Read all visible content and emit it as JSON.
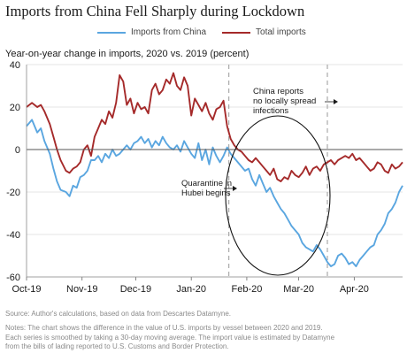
{
  "title": "Imports from China Fell Sharply during Lockdown",
  "subtitle": "Year-on-year change in imports, 2020 vs. 2019 (percent)",
  "source": "Source: Author's calculations, based on data from Descartes Datamyne.",
  "notes": [
    "Notes: The chart shows the difference in the value of U.S. imports by vessel between 2020 and 2019.",
    "Each series is smoothed by taking a 30-day moving average. The import value is estimated by Datamyne",
    "from the bills of lading reported to U.S. Customs and Border Protection."
  ],
  "colors": {
    "china": "#5aa6e0",
    "total": "#a52a2a",
    "grid": "#dddddd",
    "zero": "#555555",
    "ref": "#999999"
  },
  "chart_data": {
    "type": "line",
    "title": "Imports from China Fell Sharply during Lockdown",
    "ylabel": "Year-on-year change in imports, 2020 vs. 2019 (percent)",
    "xlabel": "",
    "ylim": [
      -60,
      40
    ],
    "xlim": [
      0,
      210
    ],
    "yticks": [
      40,
      20,
      0,
      -20,
      -40,
      -60
    ],
    "xticks": [
      {
        "label": "Oct-19",
        "x": 0
      },
      {
        "label": "Nov-19",
        "x": 31
      },
      {
        "label": "Dec-19",
        "x": 61
      },
      {
        "label": "Jan-20",
        "x": 92
      },
      {
        "label": "Feb-20",
        "x": 123
      },
      {
        "label": "Mar-20",
        "x": 152
      },
      {
        "label": "Apr-20",
        "x": 183
      }
    ],
    "grid": true,
    "legend_position": "top",
    "reference_lines": [
      {
        "x": 113,
        "label": ""
      },
      {
        "x": 168,
        "label": ""
      }
    ],
    "annotations": [
      {
        "text": [
          "China reports",
          "no locally spread",
          "infections"
        ]
      },
      {
        "text": [
          "Quarantine in",
          "Hubei begins"
        ]
      }
    ],
    "series": [
      {
        "name": "Imports from China",
        "x": [
          0,
          3,
          6,
          8,
          10,
          13,
          15,
          17,
          19,
          22,
          24,
          26,
          28,
          30,
          32,
          34,
          36,
          38,
          40,
          42,
          44,
          46,
          48,
          50,
          52,
          54,
          56,
          58,
          60,
          62,
          64,
          66,
          68,
          70,
          72,
          74,
          76,
          78,
          80,
          82,
          84,
          86,
          88,
          90,
          92,
          94,
          96,
          98,
          100,
          102,
          104,
          106,
          108,
          110,
          112,
          114,
          116,
          118,
          120,
          122,
          124,
          126,
          128,
          130,
          132,
          134,
          136,
          138,
          140,
          142,
          144,
          146,
          148,
          150,
          152,
          154,
          156,
          158,
          160,
          162,
          164,
          166,
          168,
          170,
          172,
          174,
          176,
          178,
          180,
          182,
          184,
          186,
          188,
          190,
          192,
          194,
          196,
          198,
          200,
          202,
          204,
          206,
          208,
          210
        ],
        "y": [
          11,
          14,
          8,
          10,
          4,
          -2,
          -9,
          -15,
          -19,
          -20,
          -22,
          -17,
          -18,
          -13,
          -12,
          -10,
          -5,
          -5,
          -3,
          -6,
          -2,
          -4,
          0,
          -3,
          -2,
          0,
          2,
          0,
          3,
          4,
          6,
          3,
          5,
          1,
          4,
          2,
          6,
          3,
          1,
          0,
          2,
          -1,
          4,
          1,
          -2,
          -4,
          3,
          -5,
          0,
          -7,
          1,
          -3,
          -6,
          -3,
          1,
          -2,
          -4,
          -6,
          -8,
          -10,
          -9,
          -14,
          -17,
          -12,
          -16,
          -20,
          -18,
          -22,
          -25,
          -28,
          -30,
          -33,
          -36,
          -38,
          -40,
          -44,
          -46,
          -47,
          -48,
          -45,
          -47,
          -50,
          -53,
          -55,
          -54,
          -50,
          -49,
          -51,
          -54,
          -53,
          -55,
          -52,
          -50,
          -48,
          -46,
          -45,
          -40,
          -38,
          -35,
          -30,
          -28,
          -25,
          -20,
          -17
        ]
      },
      {
        "name": "Total imports",
        "x": [
          0,
          3,
          6,
          8,
          10,
          13,
          15,
          17,
          19,
          22,
          24,
          26,
          28,
          30,
          32,
          34,
          36,
          38,
          40,
          42,
          44,
          46,
          48,
          50,
          52,
          54,
          56,
          58,
          60,
          62,
          64,
          66,
          68,
          70,
          72,
          74,
          76,
          78,
          80,
          82,
          84,
          86,
          88,
          90,
          92,
          94,
          96,
          98,
          100,
          102,
          104,
          106,
          108,
          110,
          112,
          114,
          116,
          118,
          120,
          122,
          124,
          126,
          128,
          130,
          132,
          134,
          136,
          138,
          140,
          142,
          144,
          146,
          148,
          150,
          152,
          154,
          156,
          158,
          160,
          162,
          164,
          166,
          168,
          170,
          172,
          174,
          176,
          178,
          180,
          182,
          184,
          186,
          188,
          190,
          192,
          194,
          196,
          198,
          200,
          202,
          204,
          206,
          208,
          210
        ],
        "y": [
          20,
          22,
          20,
          21,
          18,
          12,
          6,
          0,
          -5,
          -10,
          -11,
          -9,
          -8,
          -6,
          0,
          2,
          -3,
          6,
          10,
          14,
          12,
          18,
          15,
          22,
          35,
          32,
          21,
          24,
          17,
          22,
          19,
          20,
          17,
          28,
          31,
          26,
          28,
          33,
          31,
          36,
          30,
          28,
          34,
          30,
          16,
          24,
          21,
          18,
          22,
          17,
          14,
          19,
          20,
          23,
          11,
          5,
          2,
          0,
          -1,
          -3,
          -5,
          -6,
          -4,
          -6,
          -8,
          -10,
          -12,
          -9,
          -14,
          -15,
          -13,
          -14,
          -10,
          -12,
          -13,
          -11,
          -8,
          -12,
          -9,
          -8,
          -10,
          -7,
          -6,
          -5,
          -7,
          -5,
          -4,
          -3,
          -4,
          -2,
          -5,
          -4,
          -6,
          -8,
          -10,
          -9,
          -6,
          -7,
          -10,
          -11,
          -7,
          -9,
          -8,
          -6
        ]
      }
    ]
  }
}
